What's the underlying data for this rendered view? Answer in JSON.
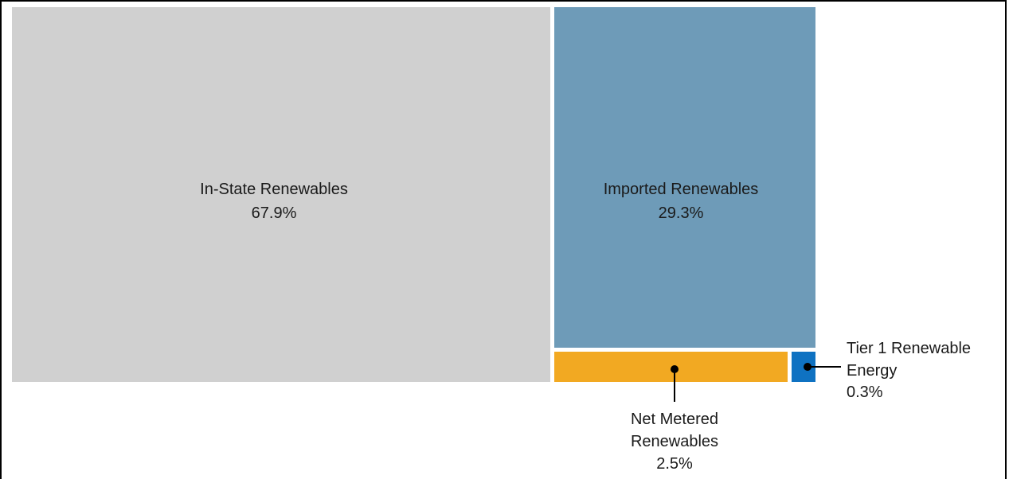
{
  "chart_data": {
    "type": "treemap",
    "items": [
      {
        "label": "In-State Renewables",
        "value": 67.9,
        "value_label": "67.9%",
        "color": "#d0d0d0"
      },
      {
        "label": "Imported Renewables",
        "value": 29.3,
        "value_label": "29.3%",
        "color": "#6e9bb8"
      },
      {
        "label_lines": [
          "Net Metered",
          "Renewables"
        ],
        "value": 2.5,
        "value_label": "2.5%",
        "color": "#f2a922"
      },
      {
        "label_lines": [
          "Tier 1 Renewable",
          "Energy"
        ],
        "value": 0.3,
        "value_label": "0.3%",
        "color": "#0f72c2"
      }
    ]
  }
}
